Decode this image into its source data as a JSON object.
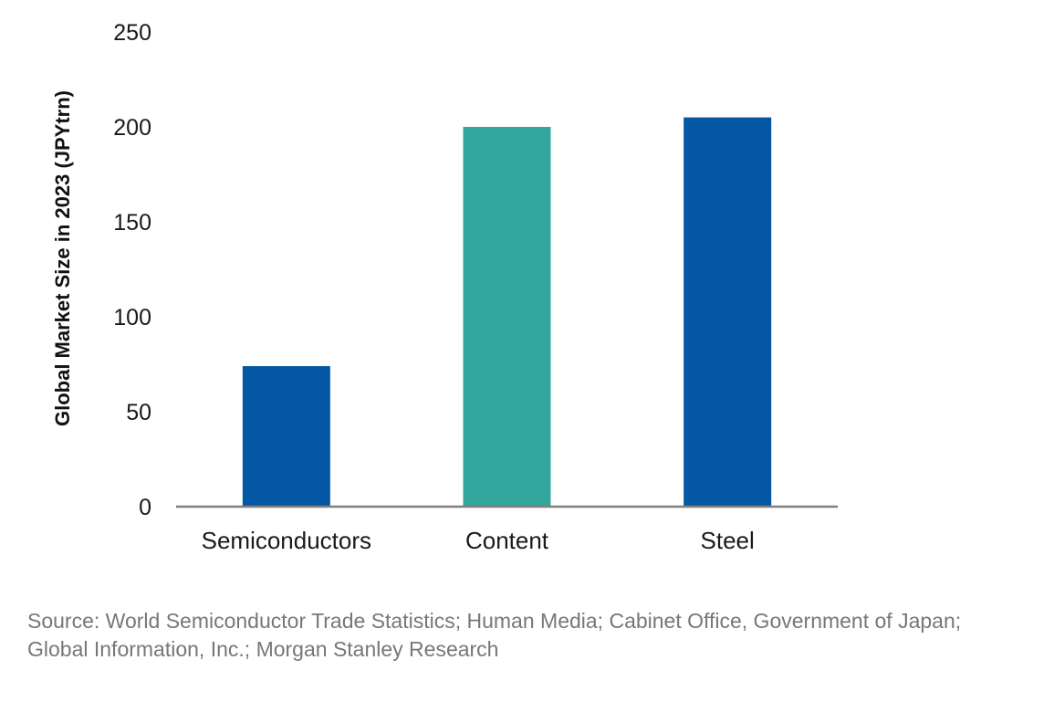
{
  "chart_data": {
    "type": "bar",
    "title": "",
    "xlabel": "",
    "ylabel": "Global Market Size in 2023 (JPYtrn)",
    "categories": [
      "Semiconductors",
      "Content",
      "Steel"
    ],
    "values": [
      74,
      200,
      205
    ],
    "colors": [
      "#0357a3",
      "#33a69e",
      "#0357a3"
    ],
    "ylim": [
      0,
      250
    ],
    "yticks": [
      0,
      50,
      100,
      150,
      200,
      250
    ],
    "grid": false,
    "axis_color": "#808080"
  },
  "source_line_1": "Source: World Semiconductor Trade Statistics; Human Media; Cabinet Office, Government of Japan;",
  "source_line_2": "Global Information, Inc.; Morgan Stanley Research"
}
